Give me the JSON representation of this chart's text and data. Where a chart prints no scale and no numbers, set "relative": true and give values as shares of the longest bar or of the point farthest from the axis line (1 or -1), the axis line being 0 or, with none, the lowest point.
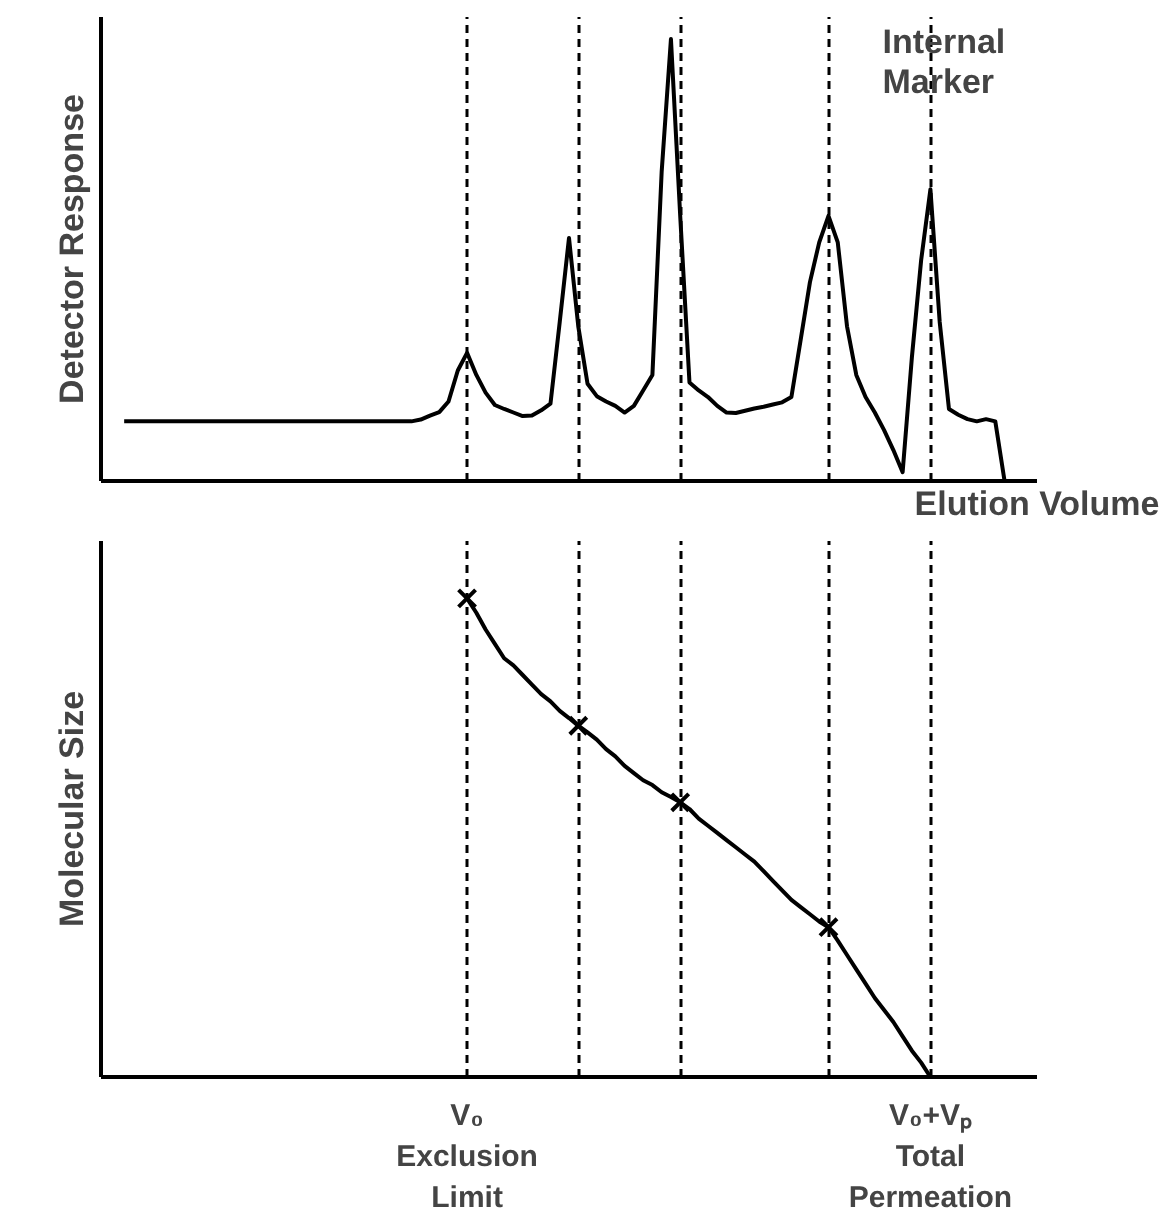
{
  "chart_data": [
    {
      "type": "line",
      "relative": true,
      "xlabel": "Elution Volume",
      "ylabel": "Detector Response",
      "tick_labels": false,
      "line_style": "solid",
      "categories": [
        null,
        null,
        null,
        null,
        null,
        null,
        null,
        null,
        null,
        null,
        null,
        null,
        null,
        null,
        null,
        null,
        null,
        null,
        null,
        null,
        null,
        null,
        null,
        null,
        null,
        null,
        null,
        null,
        null,
        null,
        null,
        null,
        null,
        null,
        null,
        null,
        null,
        null,
        null,
        null,
        null,
        null,
        null,
        null,
        null,
        null,
        null,
        null,
        null,
        null,
        null,
        null,
        null,
        null,
        null,
        null,
        null,
        null,
        null,
        null,
        null,
        null,
        null,
        null,
        null,
        null,
        null,
        null,
        null,
        null,
        null,
        null,
        null,
        null,
        null,
        null,
        null,
        null,
        null,
        null,
        null,
        null,
        null,
        null,
        null,
        null,
        null,
        null,
        null,
        null,
        null,
        null,
        null,
        null,
        null,
        null,
        null,
        null,
        null,
        null,
        null
      ],
      "series": [
        {
          "color": "#000000",
          "values": [
            null,
            null,
            0.135,
            0.135,
            0.135,
            0.135,
            0.135,
            0.135,
            0.135,
            0.135,
            0.135,
            0.135,
            0.135,
            0.135,
            0.135,
            0.135,
            0.135,
            0.135,
            0.135,
            0.135,
            0.135,
            0.135,
            0.135,
            0.135,
            0.135,
            0.135,
            0.135,
            0.135,
            0.135,
            0.135,
            0.135,
            0.135,
            0.135,
            0.135,
            0.139,
            0.148,
            0.156,
            0.18,
            0.25,
            0.29,
            0.24,
            0.2,
            0.172,
            0.163,
            0.155,
            0.147,
            0.148,
            0.16,
            0.175,
            0.36,
            0.55,
            0.35,
            0.22,
            0.192,
            0.18,
            0.17,
            0.155,
            0.17,
            0.205,
            0.24,
            0.7,
            1.0,
            0.6,
            0.223,
            0.205,
            0.19,
            0.17,
            0.155,
            0.154,
            0.159,
            0.164,
            0.168,
            0.173,
            0.178,
            0.19,
            0.32,
            0.45,
            0.54,
            0.6,
            0.54,
            0.35,
            0.24,
            0.19,
            0.155,
            0.115,
            0.07,
            0.02,
            0.28,
            0.5,
            0.66,
            0.36,
            0.163,
            0.15,
            0.14,
            0.135,
            0.14,
            0.135,
            0.0,
            null,
            null,
            null
          ]
        }
      ],
      "grid": "x",
      "annotations": [
        "Internal Marker"
      ]
    },
    {
      "type": "line",
      "relative": true,
      "ylabel": "Molecular Size",
      "tick_labels": "x",
      "line_style": "solid",
      "categories": [
        null,
        null,
        null,
        null,
        null,
        null,
        null,
        null,
        null,
        null,
        null,
        null,
        null,
        null,
        null,
        null,
        null,
        null,
        null,
        null,
        null,
        null,
        null,
        null,
        null,
        null,
        null,
        null,
        null,
        null,
        null,
        null,
        null,
        null,
        null,
        null,
        null,
        null,
        null,
        "V₀\nExclusion\nLimit",
        null,
        null,
        null,
        null,
        null,
        null,
        null,
        null,
        null,
        null,
        null,
        null,
        null,
        null,
        null,
        null,
        null,
        null,
        null,
        null,
        null,
        null,
        null,
        null,
        null,
        null,
        null,
        null,
        null,
        null,
        null,
        null,
        null,
        null,
        null,
        null,
        null,
        null,
        null,
        null,
        null,
        null,
        null,
        null,
        null,
        null,
        null,
        null,
        null,
        "V₀+Vₚ\nTotal\nPermeation",
        null,
        null,
        null,
        null,
        null,
        null,
        null,
        null,
        null,
        null,
        null
      ],
      "series": [
        {
          "color": "#000000",
          "values": [
            null,
            null,
            null,
            null,
            null,
            null,
            null,
            null,
            null,
            null,
            null,
            null,
            null,
            null,
            null,
            null,
            null,
            null,
            null,
            null,
            null,
            null,
            null,
            null,
            null,
            null,
            null,
            null,
            null,
            null,
            null,
            null,
            null,
            null,
            null,
            null,
            null,
            null,
            null,
            1.0,
            0.97,
            0.935,
            0.905,
            0.875,
            0.86,
            0.84,
            0.82,
            0.8,
            0.785,
            0.765,
            0.75,
            0.734,
            0.72,
            0.705,
            0.685,
            0.67,
            0.65,
            0.635,
            0.62,
            0.61,
            0.595,
            0.585,
            0.574,
            0.56,
            0.54,
            0.525,
            0.51,
            0.495,
            0.48,
            0.465,
            0.45,
            0.43,
            0.41,
            0.39,
            0.37,
            0.355,
            0.34,
            0.325,
            0.313,
            0.285,
            0.255,
            0.225,
            0.195,
            0.165,
            0.14,
            0.115,
            0.085,
            0.055,
            0.03,
            0.0,
            null,
            null,
            null,
            null,
            null,
            null,
            null,
            null,
            null,
            null,
            null
          ]
        },
        {
          "type": "scatter",
          "marker": "cross",
          "color": "#000000",
          "values": [
            null,
            null,
            null,
            null,
            null,
            null,
            null,
            null,
            null,
            null,
            null,
            null,
            null,
            null,
            null,
            null,
            null,
            null,
            null,
            null,
            null,
            null,
            null,
            null,
            null,
            null,
            null,
            null,
            null,
            null,
            null,
            null,
            null,
            null,
            null,
            null,
            null,
            null,
            null,
            1.0,
            null,
            null,
            null,
            null,
            null,
            null,
            null,
            null,
            null,
            null,
            null,
            0.734,
            null,
            null,
            null,
            null,
            null,
            null,
            null,
            null,
            null,
            null,
            0.574,
            null,
            null,
            null,
            null,
            null,
            null,
            null,
            null,
            null,
            null,
            null,
            null,
            null,
            null,
            null,
            0.313,
            null,
            null,
            null,
            null,
            null,
            null,
            null,
            null,
            null,
            null,
            null,
            null,
            null,
            null,
            null,
            null,
            null,
            null,
            null,
            null,
            null,
            null
          ]
        }
      ],
      "grid": "x"
    }
  ]
}
